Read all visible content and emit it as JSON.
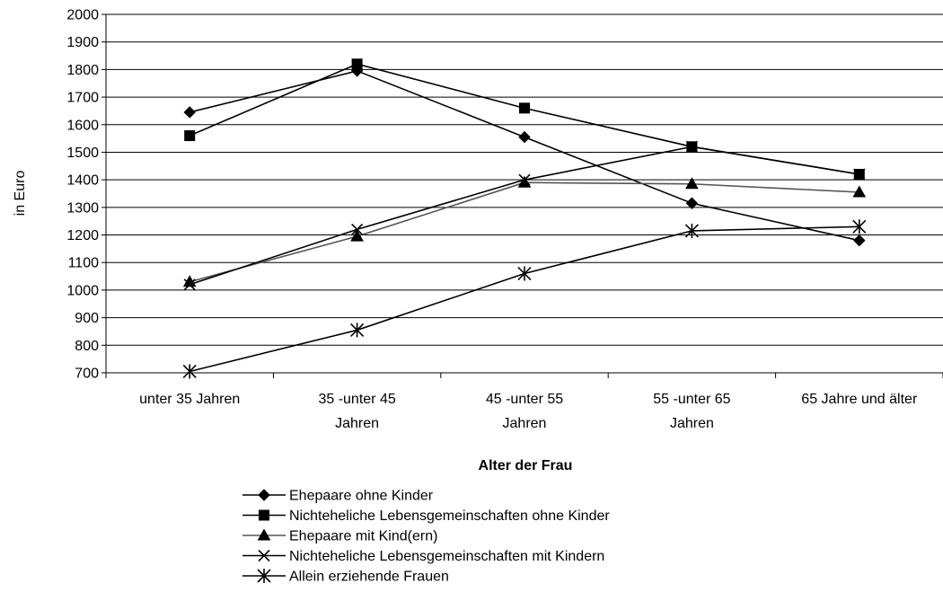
{
  "chart_data": {
    "type": "line",
    "categories": [
      [
        "unter 35 Jahren"
      ],
      [
        "35 -unter 45",
        "Jahren"
      ],
      [
        "45 -unter 55",
        "Jahren"
      ],
      [
        "55 -unter 65",
        "Jahren"
      ],
      [
        "65 Jahre und älter"
      ]
    ],
    "xlabel": "Alter der Frau",
    "ylabel": "in Euro",
    "ylim": [
      700,
      2000
    ],
    "yticks": [
      700,
      800,
      900,
      1000,
      1100,
      1200,
      1300,
      1400,
      1500,
      1600,
      1700,
      1800,
      1900,
      2000
    ],
    "grid": true,
    "legend_position": "bottom",
    "series": [
      {
        "name": "Ehepaare ohne Kinder",
        "marker": "diamond",
        "color": "#000000",
        "values": [
          1645,
          1795,
          1555,
          1315,
          1180
        ]
      },
      {
        "name": "Nichteheliche Lebensgemeinschaften ohne Kinder",
        "marker": "square",
        "color": "#000000",
        "values": [
          1560,
          1820,
          1660,
          1520,
          1420
        ]
      },
      {
        "name": "Ehepaare mit Kind(ern)",
        "marker": "triangle",
        "color": "#555555",
        "values": [
          1030,
          1195,
          1390,
          1385,
          1355
        ]
      },
      {
        "name": "Nichteheliche Lebensgemeinschaften mit Kindern",
        "marker": "x",
        "color": "#000000",
        "values": [
          1020,
          1220,
          1400,
          1520,
          1420
        ]
      },
      {
        "name": "Allein erziehende Frauen",
        "marker": "asterisk",
        "color": "#000000",
        "values": [
          705,
          855,
          1060,
          1215,
          1230
        ]
      }
    ]
  }
}
